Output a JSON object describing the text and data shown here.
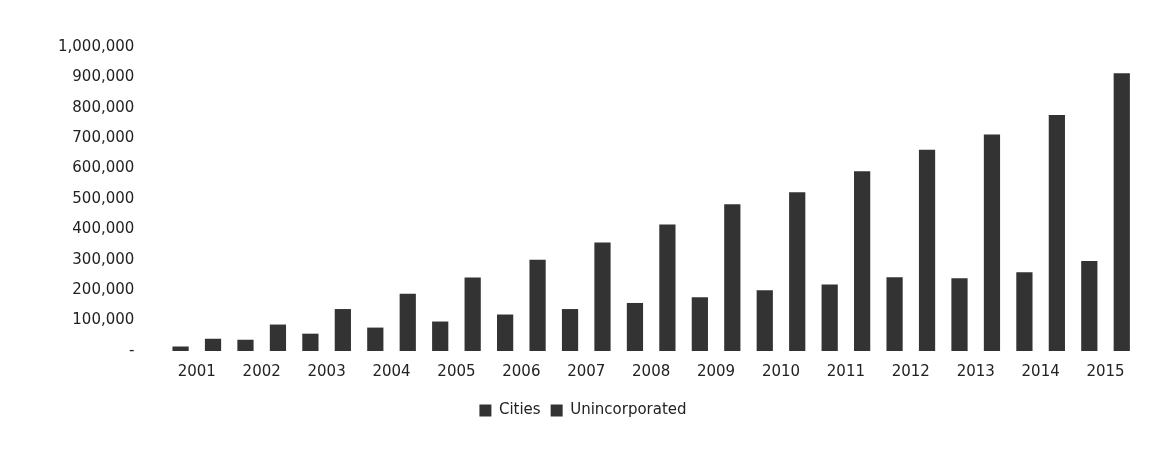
{
  "chart_data": {
    "type": "bar",
    "categories": [
      "2001",
      "2002",
      "2003",
      "2004",
      "2005",
      "2006",
      "2007",
      "2008",
      "2009",
      "2010",
      "2011",
      "2012",
      "2013",
      "2014",
      "2015"
    ],
    "series": [
      {
        "name": "Cities",
        "color": "#333333",
        "values": [
          15000,
          37000,
          57000,
          77000,
          97000,
          120000,
          138000,
          158000,
          177000,
          200000,
          219000,
          243000,
          239000,
          259000,
          296000
        ]
      },
      {
        "name": "Unincorporated",
        "color": "#333333",
        "values": [
          40000,
          87000,
          138000,
          188000,
          242000,
          300000,
          357000,
          416000,
          483000,
          522000,
          591000,
          662000,
          712000,
          776000,
          914000
        ]
      }
    ],
    "ylim": [
      0,
      1000000
    ],
    "yticks": [
      {
        "value": 0,
        "label": "-"
      },
      {
        "value": 100000,
        "label": "100,000"
      },
      {
        "value": 200000,
        "label": "200,000"
      },
      {
        "value": 300000,
        "label": "300,000"
      },
      {
        "value": 400000,
        "label": "400,000"
      },
      {
        "value": 500000,
        "label": "500,000"
      },
      {
        "value": 600000,
        "label": "600,000"
      },
      {
        "value": 700000,
        "label": "700,000"
      },
      {
        "value": 800000,
        "label": "800,000"
      },
      {
        "value": 900000,
        "label": "900,000"
      },
      {
        "value": 1000000,
        "label": "1,000,000"
      }
    ],
    "grid": false,
    "legend": "bottom"
  }
}
